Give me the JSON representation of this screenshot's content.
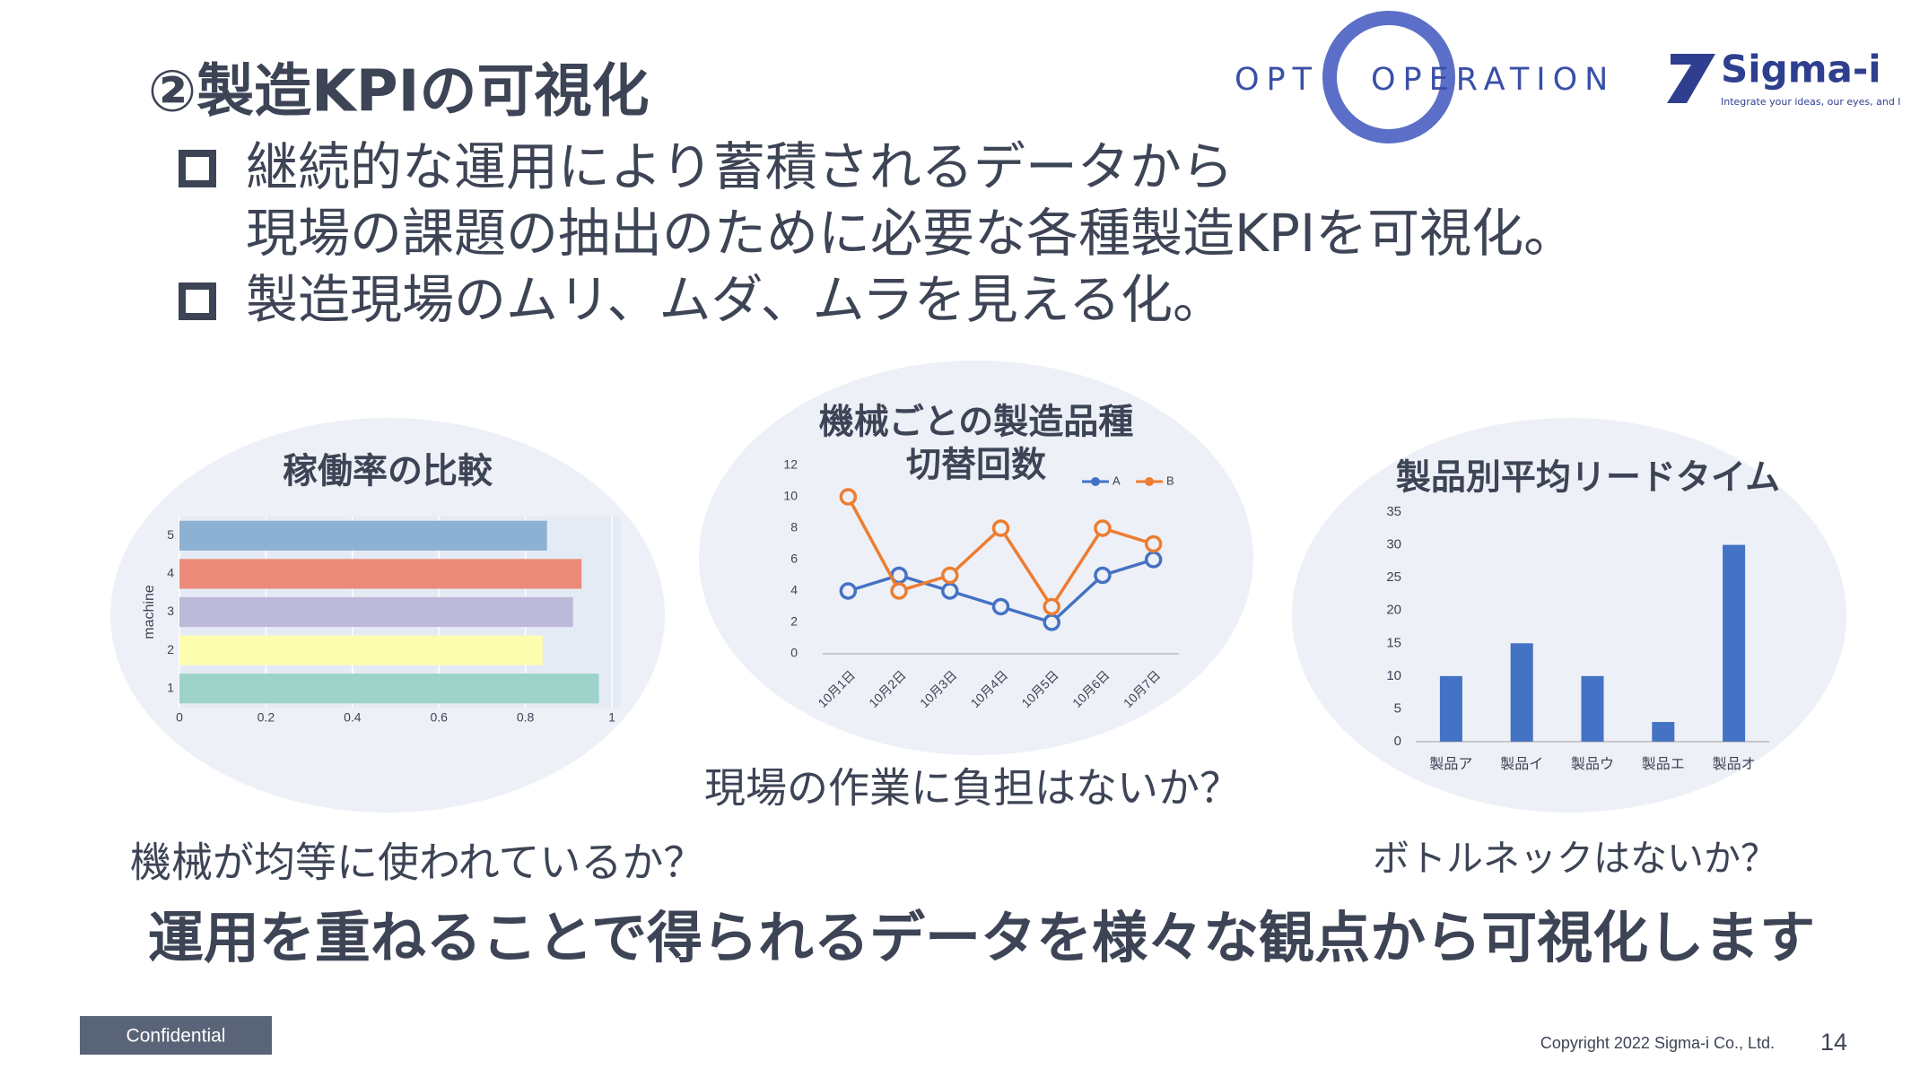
{
  "slide": {
    "title": "②製造KPIの可視化",
    "bullets": [
      [
        "継続的な運用により蓄積されるデータから",
        "現場の課題の抽出のために必要な各種製造KPIを可視化。"
      ],
      [
        "製造現場のムリ、ムダ、ムラを見える化。"
      ]
    ],
    "questions": [
      "機械が均等に使われているか？",
      "現場の作業に負担はないか？",
      "ボトルネックはないか？"
    ],
    "conclusion": "運用を重ねることで得られるデータを様々な観点から可視化します",
    "logo_opt": "OPT",
    "logo_operation": "OPERATION",
    "logo_sigma": "Sigma-i",
    "logo_tagline": "Integrate your ideas, our eyes, and I",
    "confidential": "Confidential",
    "copyright": "Copyright  2022 Sigma-i Co., Ltd.",
    "page": "14"
  },
  "chart_data": [
    {
      "type": "hbar",
      "title": [
        "稼働率の比較"
      ],
      "y_label": "machine",
      "categories": [
        "1",
        "2",
        "3",
        "4",
        "5"
      ],
      "values": [
        0.97,
        0.84,
        0.91,
        0.93,
        0.85
      ],
      "colors": [
        "#9dd3c8",
        "#fdfdb0",
        "#bdb9d9",
        "#ec8a7a",
        "#8cb1d2"
      ],
      "xlim": [
        0,
        1
      ],
      "xticks": [
        0,
        0.2,
        0.4,
        0.6,
        0.8,
        1
      ]
    },
    {
      "type": "line",
      "title": [
        "機械ごとの製造品種",
        "切替回数"
      ],
      "categories": [
        "10月1日",
        "10月2日",
        "10月3日",
        "10月4日",
        "10月5日",
        "10月6日",
        "10月7日"
      ],
      "series": [
        {
          "name": "A",
          "color": "#4472c4",
          "values": [
            4,
            5,
            4,
            3,
            2,
            5,
            6
          ]
        },
        {
          "name": "B",
          "color": "#ed7d31",
          "values": [
            10,
            4,
            5,
            8,
            3,
            8,
            7
          ]
        }
      ],
      "ylim": [
        0,
        12
      ],
      "yticks": [
        0,
        2,
        4,
        6,
        8,
        10,
        12
      ],
      "legend": "top-right"
    },
    {
      "type": "bar",
      "title": [
        "製品別平均リードタイム"
      ],
      "categories": [
        "製品ア",
        "製品イ",
        "製品ウ",
        "製品エ",
        "製品オ"
      ],
      "values": [
        10,
        15,
        10,
        3,
        30
      ],
      "color": "#4472c4",
      "ylim": [
        0,
        35
      ],
      "yticks": [
        0,
        5,
        10,
        15,
        20,
        25,
        30,
        35
      ]
    }
  ]
}
